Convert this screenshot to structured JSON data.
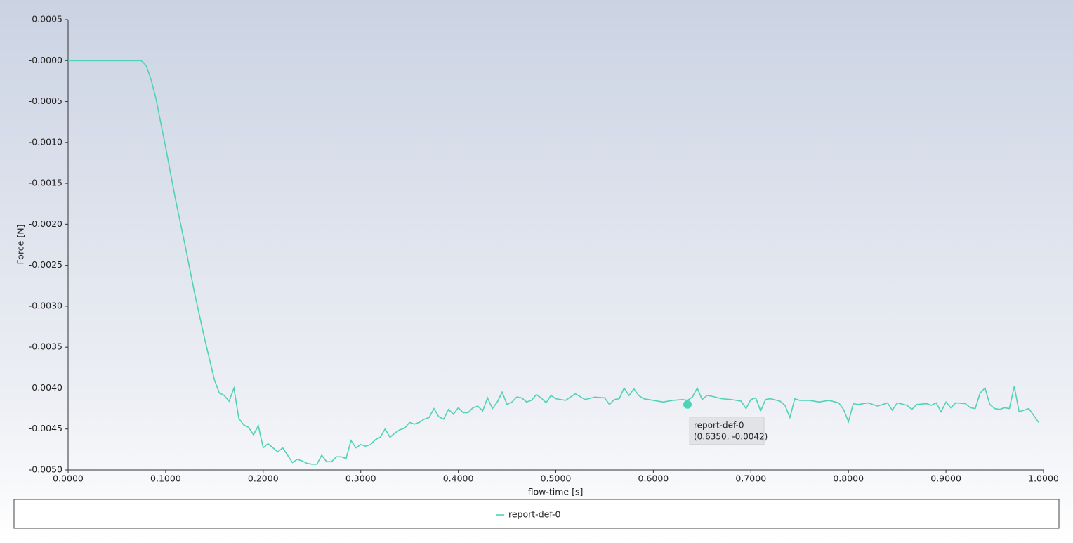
{
  "chart_data": {
    "type": "line",
    "xlabel": "flow-time [s]",
    "ylabel": "Force [N]",
    "x": [
      0,
      0.075,
      0.08,
      0.085,
      0.09,
      0.1,
      0.11,
      0.12,
      0.13,
      0.14,
      0.15,
      0.155,
      0.16,
      0.165,
      0.17,
      0.175,
      0.18,
      0.185,
      0.19,
      0.195,
      0.2,
      0.205,
      0.21,
      0.215,
      0.22,
      0.225,
      0.23,
      0.235,
      0.24,
      0.245,
      0.25,
      0.255,
      0.26,
      0.265,
      0.27,
      0.275,
      0.28,
      0.285,
      0.29,
      0.295,
      0.3,
      0.305,
      0.31,
      0.315,
      0.32,
      0.325,
      0.33,
      0.335,
      0.34,
      0.345,
      0.35,
      0.355,
      0.36,
      0.365,
      0.37,
      0.375,
      0.38,
      0.385,
      0.39,
      0.395,
      0.4,
      0.405,
      0.41,
      0.415,
      0.42,
      0.425,
      0.43,
      0.435,
      0.44,
      0.445,
      0.45,
      0.455,
      0.46,
      0.465,
      0.47,
      0.475,
      0.48,
      0.485,
      0.49,
      0.495,
      0.5,
      0.51,
      0.52,
      0.53,
      0.54,
      0.55,
      0.555,
      0.56,
      0.565,
      0.57,
      0.575,
      0.58,
      0.585,
      0.59,
      0.6,
      0.61,
      0.62,
      0.63,
      0.635,
      0.64,
      0.645,
      0.65,
      0.655,
      0.66,
      0.67,
      0.68,
      0.69,
      0.695,
      0.7,
      0.705,
      0.71,
      0.715,
      0.72,
      0.73,
      0.735,
      0.74,
      0.745,
      0.75,
      0.76,
      0.77,
      0.78,
      0.79,
      0.795,
      0.8,
      0.805,
      0.81,
      0.82,
      0.83,
      0.84,
      0.845,
      0.85,
      0.86,
      0.865,
      0.87,
      0.88,
      0.885,
      0.89,
      0.895,
      0.9,
      0.905,
      0.91,
      0.92,
      0.925,
      0.93,
      0.935,
      0.94,
      0.945,
      0.95,
      0.955,
      0.96,
      0.965,
      0.97,
      0.975,
      0.985,
      0.995
    ],
    "series": [
      {
        "name": "report-def-0",
        "color": "#4fd3b6",
        "values": [
          0,
          0,
          -6e-05,
          -0.00023,
          -0.00046,
          -0.00106,
          -0.00169,
          -0.00226,
          -0.00286,
          -0.0034,
          -0.0039,
          -0.00406,
          -0.00409,
          -0.00416,
          -0.004,
          -0.00437,
          -0.00445,
          -0.00448,
          -0.00457,
          -0.00446,
          -0.00473,
          -0.00468,
          -0.00473,
          -0.00478,
          -0.00473,
          -0.00482,
          -0.00491,
          -0.00487,
          -0.00489,
          -0.00492,
          -0.00493,
          -0.00493,
          -0.00482,
          -0.0049,
          -0.0049,
          -0.00484,
          -0.00484,
          -0.00486,
          -0.00464,
          -0.00473,
          -0.00469,
          -0.00471,
          -0.00469,
          -0.00463,
          -0.0046,
          -0.0045,
          -0.0046,
          -0.00455,
          -0.00451,
          -0.00449,
          -0.00442,
          -0.00444,
          -0.00442,
          -0.00438,
          -0.00436,
          -0.00425,
          -0.00435,
          -0.00438,
          -0.00426,
          -0.00432,
          -0.00424,
          -0.0043,
          -0.0043,
          -0.00424,
          -0.00422,
          -0.00428,
          -0.00412,
          -0.00425,
          -0.00417,
          -0.00405,
          -0.0042,
          -0.00417,
          -0.00411,
          -0.00412,
          -0.00417,
          -0.00415,
          -0.00408,
          -0.00412,
          -0.00418,
          -0.00409,
          -0.00413,
          -0.00415,
          -0.00407,
          -0.00414,
          -0.00411,
          -0.00412,
          -0.0042,
          -0.00414,
          -0.00413,
          -0.004,
          -0.00409,
          -0.00401,
          -0.00409,
          -0.00413,
          -0.00415,
          -0.00417,
          -0.00415,
          -0.00414,
          -0.00415,
          -0.00411,
          -0.004,
          -0.00414,
          -0.00409,
          -0.0041,
          -0.00413,
          -0.00414,
          -0.00416,
          -0.00425,
          -0.00414,
          -0.00412,
          -0.00428,
          -0.00414,
          -0.00413,
          -0.00416,
          -0.00421,
          -0.00436,
          -0.00413,
          -0.00415,
          -0.00415,
          -0.00417,
          -0.00415,
          -0.00418,
          -0.00426,
          -0.00441,
          -0.00419,
          -0.0042,
          -0.00418,
          -0.00422,
          -0.00418,
          -0.00427,
          -0.00418,
          -0.00421,
          -0.00426,
          -0.0042,
          -0.00419,
          -0.00421,
          -0.00418,
          -0.00429,
          -0.00417,
          -0.00424,
          -0.00418,
          -0.00419,
          -0.00424,
          -0.00425,
          -0.00406,
          -0.004,
          -0.0042,
          -0.00425,
          -0.00426,
          -0.00424,
          -0.00425,
          -0.00398,
          -0.00429,
          -0.00425,
          -0.00442
        ]
      }
    ],
    "xlim": [
      0,
      1
    ],
    "xticks": [
      {
        "value": 0,
        "label": "0.0000"
      },
      {
        "value": 0.1,
        "label": "0.1000"
      },
      {
        "value": 0.2,
        "label": "0.2000"
      },
      {
        "value": 0.3,
        "label": "0.3000"
      },
      {
        "value": 0.4,
        "label": "0.4000"
      },
      {
        "value": 0.5,
        "label": "0.5000"
      },
      {
        "value": 0.6,
        "label": "0.6000"
      },
      {
        "value": 0.7,
        "label": "0.7000"
      },
      {
        "value": 0.8,
        "label": "0.8000"
      },
      {
        "value": 0.9,
        "label": "0.9000"
      },
      {
        "value": 1,
        "label": "1.0000"
      }
    ],
    "ylim": [
      -0.005,
      0.0005
    ],
    "yticks": [
      0.0005,
      {
        "value": 0,
        "label": "-0.0000"
      },
      -0.0005,
      {
        "value": -0.001,
        "label": "-0.0010"
      },
      -0.0015,
      {
        "value": -0.002,
        "label": "-0.0020"
      },
      -0.0025,
      {
        "value": -0.003,
        "label": "-0.0030"
      },
      -0.0035,
      {
        "value": -0.004,
        "label": "-0.0040"
      },
      -0.0045,
      {
        "value": -0.005,
        "label": "-0.0050"
      }
    ],
    "tooltip": {
      "x": 0.635,
      "y": -0.0042,
      "label": "(0.6350, -0.0042)"
    }
  }
}
